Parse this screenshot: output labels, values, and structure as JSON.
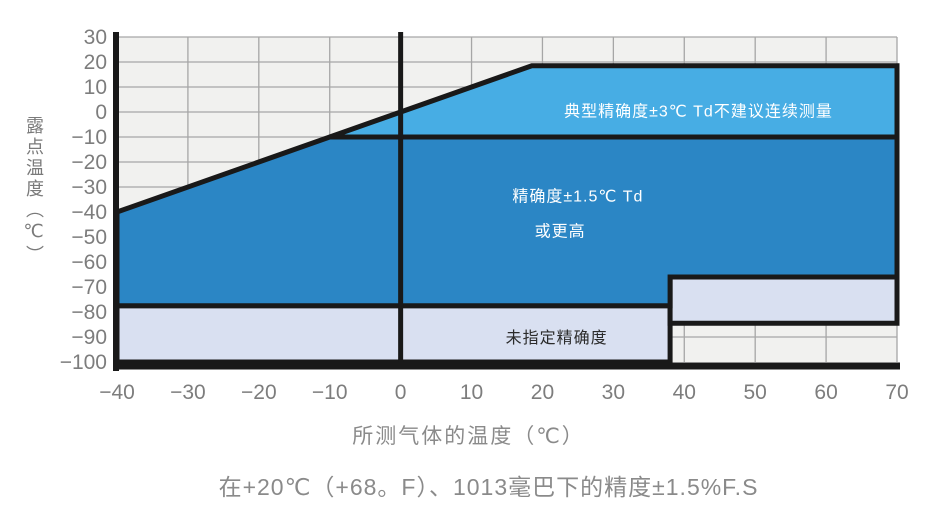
{
  "chart_data": {
    "type": "area",
    "title": "",
    "xlabel": "所测气体的温度（℃）",
    "ylabel": "露点温度（℃）",
    "caption": "在+20℃（+68。F）、1013毫巴下的精度±1.5%F.S",
    "xlim": [
      -40,
      70
    ],
    "ylim": [
      -100,
      30
    ],
    "x_ticks": [
      -40,
      -30,
      -20,
      -10,
      0,
      10,
      20,
      30,
      40,
      50,
      60,
      70
    ],
    "y_ticks": [
      30,
      20,
      10,
      0,
      -10,
      -20,
      -30,
      -40,
      -50,
      -60,
      -70,
      -80,
      -90,
      -100
    ],
    "grid": true,
    "legend_position": "none",
    "zero_line_x": 0,
    "colors": {
      "plot_bg": "#f1f1ef",
      "grid": "#a6a6a6",
      "line": "#191919",
      "tick_text": "#7d7d7d",
      "title_text": "#8a8a8a",
      "typical_region": "#47ade4",
      "accurate_region": "#2b86c5",
      "unspecified_region": "#d9e0f1"
    },
    "regions": [
      {
        "name": "unspecified-accuracy",
        "color": "#d9e0f1",
        "points": [
          [
            -40,
            -77.5
          ],
          [
            38,
            -77.5
          ],
          [
            38,
            -100
          ],
          [
            -40,
            -100
          ]
        ],
        "label_lines": [
          {
            "text": "未指定精确度",
            "at": [
              22,
              -90.5
            ],
            "color": "#2b2b2b"
          }
        ]
      },
      {
        "name": "unspecified-accuracy-right",
        "color": "#d9e0f1",
        "points": [
          [
            38,
            -66
          ],
          [
            70,
            -66
          ],
          [
            70,
            -84.5
          ],
          [
            38,
            -84.5
          ]
        ],
        "label_lines": []
      },
      {
        "name": "typical-accuracy",
        "color": "#47ade4",
        "points": [
          [
            -10,
            -10
          ],
          [
            18.5,
            18.5
          ],
          [
            70,
            18.5
          ],
          [
            70,
            -10
          ]
        ],
        "label_lines": [
          {
            "text": "典型精确度±3℃ Td不建议连续测量",
            "at": [
              42,
              0
            ],
            "color": "#ffffff"
          }
        ]
      },
      {
        "name": "high-accuracy",
        "color": "#2b86c5",
        "points": [
          [
            -40,
            -40
          ],
          [
            -10,
            -10
          ],
          [
            70,
            -10
          ],
          [
            70,
            -66
          ],
          [
            38,
            -66
          ],
          [
            38,
            -77.5
          ],
          [
            -40,
            -77.5
          ]
        ],
        "label_lines": [
          {
            "text": "精确度±1.5℃ Td",
            "at": [
              25,
              -34
            ],
            "color": "#ffffff"
          },
          {
            "text": "或更高",
            "at": [
              22.5,
              -48
            ],
            "color": "#ffffff"
          }
        ]
      }
    ]
  }
}
